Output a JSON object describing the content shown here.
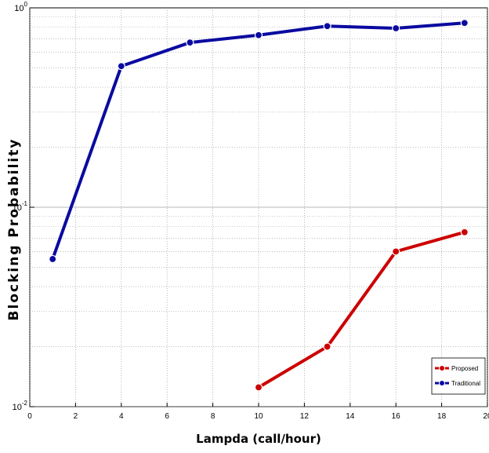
{
  "chart_data": {
    "type": "line",
    "title": "",
    "xlabel": "Lampda (call/hour)",
    "ylabel": "Blocking Probability",
    "xlim": [
      0,
      20
    ],
    "ylim": [
      0.01,
      1
    ],
    "yscale": "log",
    "grid": true,
    "legend_position": "bottom-right",
    "x_ticks": [
      "0",
      "2",
      "4",
      "6",
      "8",
      "10",
      "12",
      "14",
      "16",
      "18",
      "20"
    ],
    "y_ticks": [
      {
        "value": 0.01,
        "base": "10",
        "exp": "-2"
      },
      {
        "value": 0.1,
        "base": "10",
        "exp": "-1"
      },
      {
        "value": 1,
        "base": "10",
        "exp": "0"
      }
    ],
    "series": [
      {
        "name": "Proposed",
        "color": "#cc0000",
        "x": [
          10,
          13,
          16,
          19
        ],
        "y": [
          0.0125,
          0.02,
          0.06,
          0.075
        ]
      },
      {
        "name": "Traditional",
        "color": "#0a0aa0",
        "x": [
          1,
          4,
          7,
          10,
          13,
          16,
          19
        ],
        "y": [
          0.055,
          0.51,
          0.67,
          0.73,
          0.81,
          0.79,
          0.84
        ]
      }
    ]
  }
}
